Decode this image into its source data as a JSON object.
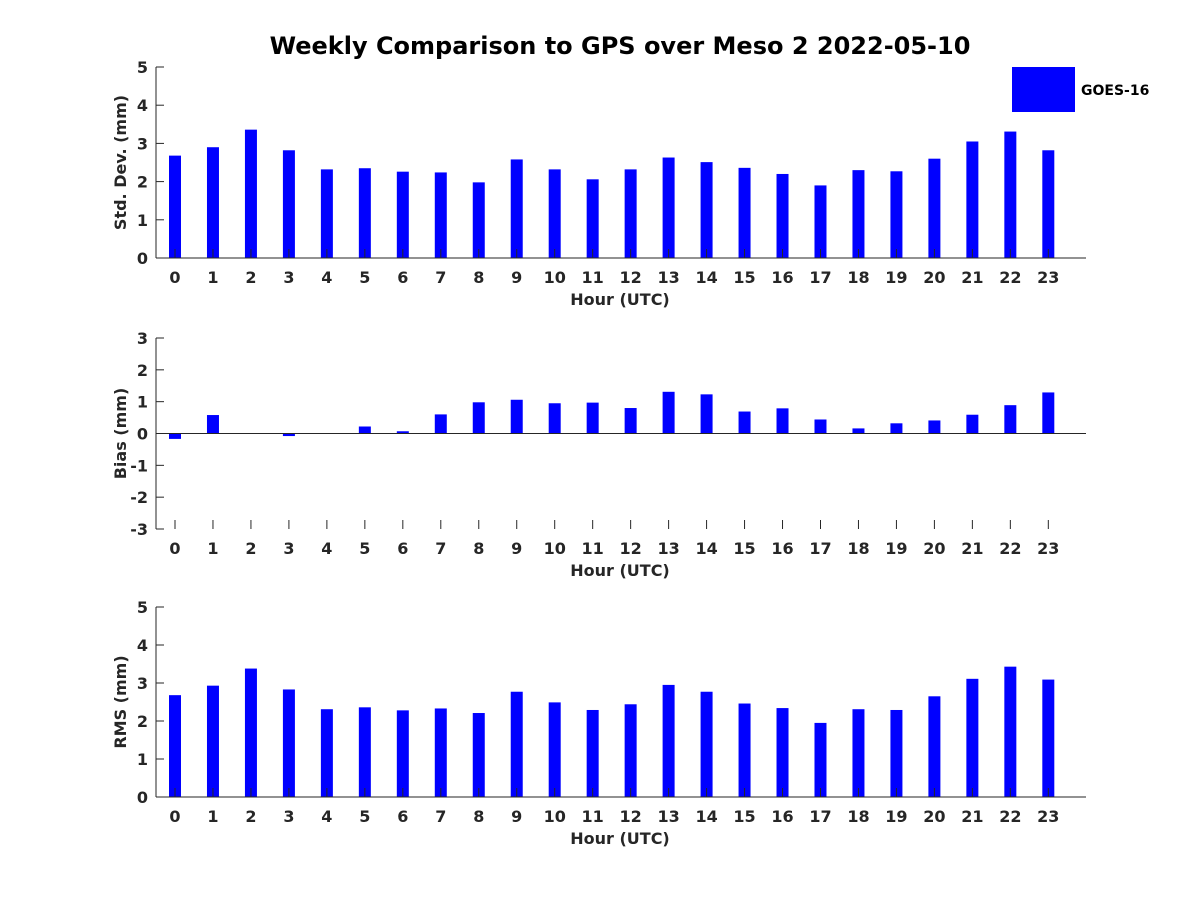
{
  "title": "Weekly Comparison to GPS over Meso 2 2022-05-10",
  "legend": {
    "label": "GOES-16",
    "color": "#0000ff"
  },
  "colors": {
    "bar": "#0000ff",
    "axis": "#262626",
    "text": "#000000"
  },
  "chart_data": [
    {
      "type": "bar",
      "title": "Weekly Comparison to GPS over Meso 2 2022-05-10",
      "xlabel": "Hour (UTC)",
      "ylabel": "Std. Dev. (mm)",
      "ylim": [
        0,
        5
      ],
      "yticks": [
        "0",
        "1",
        "2",
        "3",
        "4",
        "5"
      ],
      "categories": [
        "0",
        "1",
        "2",
        "3",
        "4",
        "5",
        "6",
        "7",
        "8",
        "9",
        "10",
        "11",
        "12",
        "13",
        "14",
        "15",
        "16",
        "17",
        "18",
        "19",
        "20",
        "21",
        "22",
        "23"
      ],
      "series": [
        {
          "name": "GOES-16",
          "values": [
            2.68,
            2.9,
            3.36,
            2.82,
            2.32,
            2.35,
            2.26,
            2.24,
            1.98,
            2.58,
            2.32,
            2.06,
            2.32,
            2.63,
            2.51,
            2.36,
            2.2,
            1.9,
            2.3,
            2.27,
            2.6,
            3.05,
            3.31,
            2.82
          ]
        }
      ]
    },
    {
      "type": "bar",
      "xlabel": "Hour (UTC)",
      "ylabel": "Bias (mm)",
      "ylim": [
        -3,
        3
      ],
      "yticks": [
        "-3",
        "-2",
        "-1",
        "0",
        "1",
        "2",
        "3"
      ],
      "categories": [
        "0",
        "1",
        "2",
        "3",
        "4",
        "5",
        "6",
        "7",
        "8",
        "9",
        "10",
        "11",
        "12",
        "13",
        "14",
        "15",
        "16",
        "17",
        "18",
        "19",
        "20",
        "21",
        "22",
        "23"
      ],
      "series": [
        {
          "name": "GOES-16",
          "values": [
            -0.17,
            0.58,
            0.01,
            -0.08,
            -0.01,
            0.22,
            0.07,
            0.6,
            0.98,
            1.06,
            0.95,
            0.97,
            0.8,
            1.31,
            1.23,
            0.69,
            0.79,
            0.44,
            0.16,
            0.32,
            0.41,
            0.59,
            0.89,
            1.29
          ]
        }
      ]
    },
    {
      "type": "bar",
      "xlabel": "Hour (UTC)",
      "ylabel": "RMS (mm)",
      "ylim": [
        0,
        5
      ],
      "yticks": [
        "0",
        "1",
        "2",
        "3",
        "4",
        "5"
      ],
      "categories": [
        "0",
        "1",
        "2",
        "3",
        "4",
        "5",
        "6",
        "7",
        "8",
        "9",
        "10",
        "11",
        "12",
        "13",
        "14",
        "15",
        "16",
        "17",
        "18",
        "19",
        "20",
        "21",
        "22",
        "23"
      ],
      "series": [
        {
          "name": "GOES-16",
          "values": [
            2.68,
            2.93,
            3.38,
            2.83,
            2.31,
            2.36,
            2.28,
            2.33,
            2.21,
            2.77,
            2.49,
            2.29,
            2.44,
            2.95,
            2.77,
            2.46,
            2.34,
            1.95,
            2.31,
            2.29,
            2.65,
            3.11,
            3.43,
            3.09
          ]
        }
      ]
    }
  ]
}
